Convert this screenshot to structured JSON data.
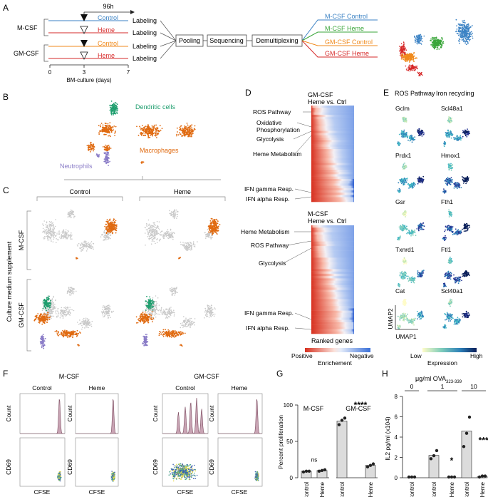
{
  "panel_letters": [
    "A",
    "B",
    "C",
    "D",
    "E",
    "F",
    "G",
    "H"
  ],
  "panelA": {
    "duration_label": "96h",
    "group_mcsf": "M-CSF",
    "group_gmcsf": "GM-CSF",
    "conditions": [
      "Control",
      "Heme",
      "Control",
      "Heme"
    ],
    "labeling": [
      "Labeling",
      "Labeling",
      "Labeling",
      "Labeling"
    ],
    "steps": [
      "Pooling",
      "Sequencing",
      "Demultiplexing"
    ],
    "outputs": [
      "M-CSF Control",
      "M-CSF Heme",
      "GM-CSF Control",
      "GM-CSF Heme"
    ],
    "axis_ticks": [
      "0",
      "3",
      "7"
    ],
    "axis_label": "BM-culture (days)",
    "colors": {
      "mcsf_control": "#3b82c4",
      "mcsf_heme": "#3aa63a",
      "gmcsf_control": "#f08a1c",
      "gmcsf_heme": "#d62a2a"
    }
  },
  "panelB": {
    "clusters": [
      "Dendritic cells",
      "Macrophages",
      "Neutrophils"
    ],
    "colors": {
      "dc": "#1e9e6e",
      "mac": "#e06a10",
      "neu": "#8a7cc7",
      "bg": "#c9c9c9"
    }
  },
  "panelC": {
    "col_labels": [
      "Control",
      "Heme"
    ],
    "row_labels": [
      "M-CSF",
      "GM-CSF"
    ],
    "side_label": "Culture medium supplement"
  },
  "panelD": {
    "top_title_1": "GM-CSF",
    "top_title_2": "Heme vs. Ctrl",
    "top_labels": [
      "ROS Pathway",
      "Oxidative",
      "Phosphorylation",
      "Glycolysis",
      "Heme Metabolism",
      "IFN gamma Resp.",
      "IFN alpha Resp."
    ],
    "bottom_title_1": "M-CSF",
    "bottom_title_2": "Heme vs. Ctrl",
    "bottom_labels": [
      "Heme Metabolism",
      "ROS Pathway",
      "Glycolysis",
      "IFN gamma Resp.",
      "IFN alpha Resp."
    ],
    "xlabel": "Ranked genes",
    "legend_pos": "Positive",
    "legend_neg": "Negative",
    "legend_title": "Enrichement"
  },
  "panelE": {
    "col_titles": [
      "ROS Pathway",
      "Iron recycling"
    ],
    "genes_left": [
      "Gclm",
      "Prdx1",
      "Gsr",
      "Txnrd1",
      "Cat"
    ],
    "genes_right": [
      "Scl48a1",
      "Hmox1",
      "Fth1",
      "Ftl1",
      "Scl40a1"
    ],
    "axis_x": "UMAP1",
    "axis_y": "UMAP2",
    "legend_low": "Low",
    "legend_high": "High",
    "legend_title": "Expression"
  },
  "panelF": {
    "group_titles": [
      "M-CSF",
      "GM-CSF"
    ],
    "col_labels": [
      "Control",
      "Heme",
      "Control",
      "Heme"
    ],
    "ylabel_hist": "Count",
    "ylabel_dot": "CD69",
    "xlabel": "CFSE"
  },
  "chart_data": [
    {
      "type": "bar",
      "panel": "G",
      "title": "",
      "subplots": [
        "M-CSF",
        "GM-CSF"
      ],
      "categories": [
        "Control",
        "Heme"
      ],
      "series": [
        {
          "name": "M-CSF",
          "values": [
            9,
            10
          ],
          "points": [
            [
              8,
              9,
              9
            ],
            [
              9,
              10,
              11
            ]
          ]
        },
        {
          "name": "GM-CSF",
          "values": [
            78,
            17
          ],
          "points": [
            [
              73,
              79,
              82
            ],
            [
              15,
              17,
              19
            ]
          ]
        }
      ],
      "annotations": [
        "ns",
        "****"
      ],
      "ylabel": "Percent proliferation",
      "yticks": [
        "0",
        "50",
        "100"
      ],
      "ylim": [
        0,
        100
      ]
    },
    {
      "type": "bar",
      "panel": "H",
      "title": "μg/ml OVA",
      "title_sub": "323-339",
      "dose_labels": [
        "0",
        "1",
        "10"
      ],
      "categories": [
        "Control",
        "Control",
        "Heme",
        "Control",
        "Heme"
      ],
      "values": [
        0.0,
        2.2,
        0.0,
        4.6,
        0.1
      ],
      "points": [
        [
          0,
          0,
          0
        ],
        [
          1.8,
          2.1,
          2.6
        ],
        [
          0,
          0,
          0
        ],
        [
          3.0,
          4.3,
          5.9
        ],
        [
          0,
          0.1,
          0.1
        ]
      ],
      "annotations": [
        "",
        "",
        "*",
        "",
        "****"
      ],
      "ylabel": "IL2 pg/ml (x104)",
      "yticks": [
        "0",
        "2",
        "4",
        "6",
        "8"
      ],
      "ylim": [
        0,
        8
      ]
    }
  ]
}
